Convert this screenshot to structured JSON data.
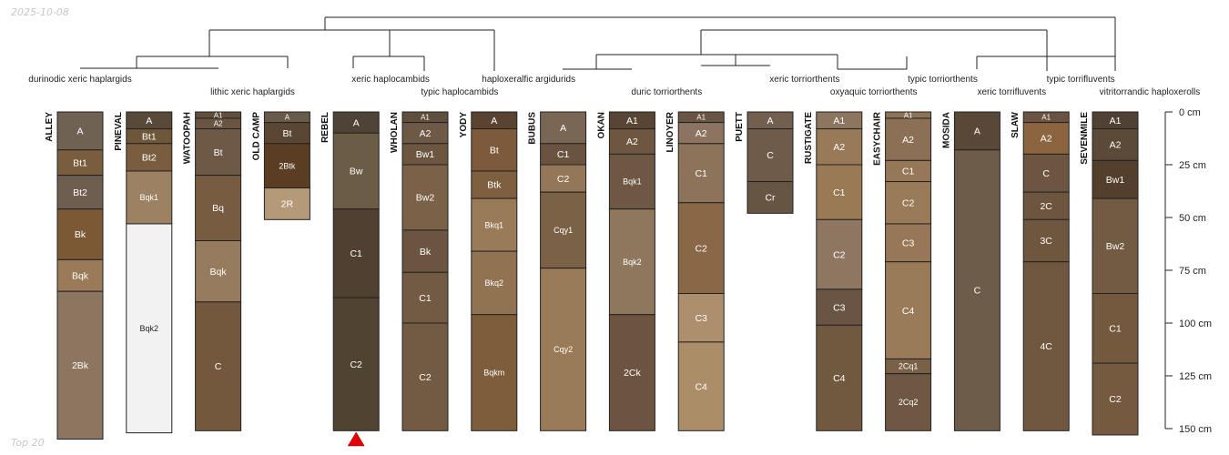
{
  "corner": {
    "date": "2025-10-08",
    "footer": "Top 20"
  },
  "colors": {
    "line": "#222222",
    "marker": "#e00000",
    "light_text": "#ffffff",
    "dark_text": "#222222"
  },
  "chart_data": {
    "type": "soil-profile-sketch",
    "depth_axis": {
      "unit": "cm",
      "range": [
        0,
        150
      ],
      "ticks": [
        0,
        25,
        50,
        75,
        100,
        125,
        150
      ],
      "tick_labels": [
        "0 cm",
        "25 cm",
        "50 cm",
        "75 cm",
        "100 cm",
        "125 cm",
        "150 cm"
      ]
    },
    "dendrogram": {
      "labels": [
        {
          "text": "durinodic xeric haplargids",
          "profile": 0,
          "row": 0
        },
        {
          "text": "lithic xeric haplargids",
          "profile": 2.5,
          "row": 1
        },
        {
          "text": "xeric haplocambids",
          "profile": 4.5,
          "row": 0
        },
        {
          "text": "typic haplocambids",
          "profile": 5.5,
          "row": 1
        },
        {
          "text": "haploxeralfic argidurids",
          "profile": 6.5,
          "row": 0
        },
        {
          "text": "duric torriorthents",
          "profile": 8.5,
          "row": 1
        },
        {
          "text": "xeric torriorthents",
          "profile": 10.5,
          "row": 0
        },
        {
          "text": "typic torriorthents",
          "profile": 12.5,
          "row": 0
        },
        {
          "text": "oxyaquic torriorthents",
          "profile": 11.5,
          "row": 1
        },
        {
          "text": "typic torrifluvents",
          "profile": 14.5,
          "row": 0
        },
        {
          "text": "xeric torrifluvents",
          "profile": 13.5,
          "row": 1
        },
        {
          "text": "vitritorrandic haploxerolls",
          "profile": 15.5,
          "row": 1
        }
      ]
    },
    "marker": {
      "profile": 4,
      "shape": "triangle"
    },
    "profiles": [
      {
        "name": "ALLEY",
        "horizons": [
          {
            "name": "A",
            "top": 0,
            "bottom": 18,
            "color": "#6f6253"
          },
          {
            "name": "Bt1",
            "top": 18,
            "bottom": 30,
            "color": "#7a5c3e"
          },
          {
            "name": "Bt2",
            "top": 30,
            "bottom": 46,
            "color": "#6e5e50"
          },
          {
            "name": "Bk",
            "top": 46,
            "bottom": 70,
            "color": "#7c5935"
          },
          {
            "name": "Bqk",
            "top": 70,
            "bottom": 85,
            "color": "#9a7a57"
          },
          {
            "name": "2Bk",
            "top": 85,
            "bottom": 155,
            "color": "#8d7660"
          }
        ]
      },
      {
        "name": "PINEVAL",
        "horizons": [
          {
            "name": "A",
            "top": 0,
            "bottom": 8,
            "color": "#594938"
          },
          {
            "name": "Bt1",
            "top": 8,
            "bottom": 15,
            "color": "#6e5639"
          },
          {
            "name": "Bt2",
            "top": 15,
            "bottom": 28,
            "color": "#7a5d3f"
          },
          {
            "name": "Bqk1",
            "top": 28,
            "bottom": 53,
            "color": "#9c8163"
          },
          {
            "name": "Bqk2",
            "top": 53,
            "bottom": 152,
            "color": "#f2f2f2"
          }
        ]
      },
      {
        "name": "WATOOPAH",
        "horizons": [
          {
            "name": "A1",
            "top": 0,
            "bottom": 3,
            "color": "#614e3d"
          },
          {
            "name": "A2",
            "top": 3,
            "bottom": 8,
            "color": "#6a5442"
          },
          {
            "name": "Bt",
            "top": 8,
            "bottom": 30,
            "color": "#6e5947"
          },
          {
            "name": "Bq",
            "top": 30,
            "bottom": 61,
            "color": "#775c42"
          },
          {
            "name": "Bqk",
            "top": 61,
            "bottom": 90,
            "color": "#967b5f"
          },
          {
            "name": "C",
            "top": 90,
            "bottom": 151,
            "color": "#73583e"
          }
        ]
      },
      {
        "name": "OLD CAMP",
        "horizons": [
          {
            "name": "A",
            "top": 0,
            "bottom": 5,
            "color": "#6a5a49"
          },
          {
            "name": "Bt",
            "top": 5,
            "bottom": 15,
            "color": "#5b4634"
          },
          {
            "name": "2Btk",
            "top": 15,
            "bottom": 36,
            "color": "#5a3d23"
          },
          {
            "name": "2R",
            "top": 36,
            "bottom": 51,
            "color": "#b49a78"
          }
        ]
      },
      {
        "name": "REBEL",
        "horizons": [
          {
            "name": "A",
            "top": 0,
            "bottom": 10,
            "color": "#4f4236"
          },
          {
            "name": "Bw",
            "top": 10,
            "bottom": 46,
            "color": "#6b5c46"
          },
          {
            "name": "C1",
            "top": 46,
            "bottom": 88,
            "color": "#4f4031"
          },
          {
            "name": "C2",
            "top": 88,
            "bottom": 151,
            "color": "#514332"
          }
        ]
      },
      {
        "name": "WHOLAN",
        "horizons": [
          {
            "name": "A1",
            "top": 0,
            "bottom": 5,
            "color": "#614f3e"
          },
          {
            "name": "A2",
            "top": 5,
            "bottom": 15,
            "color": "#6e5946"
          },
          {
            "name": "Bw1",
            "top": 15,
            "bottom": 25,
            "color": "#6d5640"
          },
          {
            "name": "Bw2",
            "top": 25,
            "bottom": 56,
            "color": "#7a6148"
          },
          {
            "name": "Bk",
            "top": 56,
            "bottom": 76,
            "color": "#6b5540"
          },
          {
            "name": "C1",
            "top": 76,
            "bottom": 100,
            "color": "#735b43"
          },
          {
            "name": "C2",
            "top": 100,
            "bottom": 151,
            "color": "#735a43"
          }
        ]
      },
      {
        "name": "YODY",
        "horizons": [
          {
            "name": "A",
            "top": 0,
            "bottom": 8,
            "color": "#5a4431"
          },
          {
            "name": "Bt",
            "top": 8,
            "bottom": 28,
            "color": "#7e5a3d"
          },
          {
            "name": "Btk",
            "top": 28,
            "bottom": 41,
            "color": "#7e6040"
          },
          {
            "name": "Bkq1",
            "top": 41,
            "bottom": 66,
            "color": "#9a7b58"
          },
          {
            "name": "Bkq2",
            "top": 66,
            "bottom": 96,
            "color": "#917352"
          },
          {
            "name": "Bqkm",
            "top": 96,
            "bottom": 151,
            "color": "#7e5e3a"
          }
        ]
      },
      {
        "name": "BUBUS",
        "horizons": [
          {
            "name": "A",
            "top": 0,
            "bottom": 15,
            "color": "#7a6654"
          },
          {
            "name": "C1",
            "top": 15,
            "bottom": 25,
            "color": "#6a5440"
          },
          {
            "name": "C2",
            "top": 25,
            "bottom": 38,
            "color": "#947658"
          },
          {
            "name": "Cqy1",
            "top": 38,
            "bottom": 74,
            "color": "#7b6246"
          },
          {
            "name": "Cqy2",
            "top": 74,
            "bottom": 151,
            "color": "#997b57"
          }
        ]
      },
      {
        "name": "OKAN",
        "horizons": [
          {
            "name": "A1",
            "top": 0,
            "bottom": 8,
            "color": "#584533"
          },
          {
            "name": "A2",
            "top": 8,
            "bottom": 20,
            "color": "#6e5641"
          },
          {
            "name": "Bqk1",
            "top": 20,
            "bottom": 46,
            "color": "#6e5743"
          },
          {
            "name": "Bqk2",
            "top": 46,
            "bottom": 96,
            "color": "#8f775e"
          },
          {
            "name": "2Ck",
            "top": 96,
            "bottom": 151,
            "color": "#6c5440"
          }
        ]
      },
      {
        "name": "LINOYER",
        "horizons": [
          {
            "name": "A1",
            "top": 0,
            "bottom": 5,
            "color": "#6a5443"
          },
          {
            "name": "A2",
            "top": 5,
            "bottom": 15,
            "color": "#8c7460"
          },
          {
            "name": "C1",
            "top": 15,
            "bottom": 43,
            "color": "#8c735a"
          },
          {
            "name": "C2",
            "top": 43,
            "bottom": 86,
            "color": "#8a6746"
          },
          {
            "name": "C3",
            "top": 86,
            "bottom": 109,
            "color": "#ad8e6d"
          },
          {
            "name": "C4",
            "top": 109,
            "bottom": 151,
            "color": "#ab8d68"
          }
        ]
      },
      {
        "name": "PUETT",
        "horizons": [
          {
            "name": "A",
            "top": 0,
            "bottom": 8,
            "color": "#725f4d"
          },
          {
            "name": "C",
            "top": 8,
            "bottom": 33,
            "color": "#6e5b4a"
          },
          {
            "name": "Cr",
            "top": 33,
            "bottom": 48,
            "color": "#675544"
          }
        ]
      },
      {
        "name": "RUSTIGATE",
        "horizons": [
          {
            "name": "A1",
            "top": 0,
            "bottom": 8,
            "color": "#8d7660"
          },
          {
            "name": "A2",
            "top": 8,
            "bottom": 25,
            "color": "#997a57"
          },
          {
            "name": "C1",
            "top": 25,
            "bottom": 51,
            "color": "#997a55"
          },
          {
            "name": "C2",
            "top": 51,
            "bottom": 84,
            "color": "#8f7660"
          },
          {
            "name": "C3",
            "top": 84,
            "bottom": 101,
            "color": "#6a5544"
          },
          {
            "name": "C4",
            "top": 101,
            "bottom": 151,
            "color": "#71593f"
          }
        ]
      },
      {
        "name": "EASYCHAIR",
        "horizons": [
          {
            "name": "A1",
            "top": 0,
            "bottom": 3,
            "color": "#8e7256"
          },
          {
            "name": "A2",
            "top": 3,
            "bottom": 23,
            "color": "#8c7056"
          },
          {
            "name": "C1",
            "top": 23,
            "bottom": 33,
            "color": "#967757"
          },
          {
            "name": "C2",
            "top": 33,
            "bottom": 53,
            "color": "#9a7b58"
          },
          {
            "name": "C3",
            "top": 53,
            "bottom": 71,
            "color": "#977757"
          },
          {
            "name": "C4",
            "top": 71,
            "bottom": 117,
            "color": "#9a7b57"
          },
          {
            "name": "2Cq1",
            "top": 117,
            "bottom": 124,
            "color": "#7a6046"
          },
          {
            "name": "2Cq2",
            "top": 124,
            "bottom": 151,
            "color": "#6e5843"
          }
        ]
      },
      {
        "name": "MOSIDA",
        "horizons": [
          {
            "name": "A",
            "top": 0,
            "bottom": 18,
            "color": "#594838"
          },
          {
            "name": "C",
            "top": 18,
            "bottom": 151,
            "color": "#6e5c4b"
          }
        ]
      },
      {
        "name": "SLAW",
        "horizons": [
          {
            "name": "A1",
            "top": 0,
            "bottom": 5,
            "color": "#6a5441"
          },
          {
            "name": "A2",
            "top": 5,
            "bottom": 20,
            "color": "#8a6540"
          },
          {
            "name": "C",
            "top": 20,
            "bottom": 38,
            "color": "#6d5641"
          },
          {
            "name": "2C",
            "top": 38,
            "bottom": 51,
            "color": "#6d5540"
          },
          {
            "name": "3C",
            "top": 51,
            "bottom": 71,
            "color": "#6f573f"
          },
          {
            "name": "4C",
            "top": 71,
            "bottom": 151,
            "color": "#70573f"
          }
        ]
      },
      {
        "name": "SEVENMILE",
        "horizons": [
          {
            "name": "A1",
            "top": 0,
            "bottom": 8,
            "color": "#4f4133"
          },
          {
            "name": "A2",
            "top": 8,
            "bottom": 23,
            "color": "#5c4a39"
          },
          {
            "name": "Bw1",
            "top": 23,
            "bottom": 41,
            "color": "#533f2c"
          },
          {
            "name": "Bw2",
            "top": 41,
            "bottom": 86,
            "color": "#735b43"
          },
          {
            "name": "C1",
            "top": 86,
            "bottom": 119,
            "color": "#75593e"
          },
          {
            "name": "C2",
            "top": 119,
            "bottom": 153,
            "color": "#765a3f"
          }
        ]
      }
    ]
  }
}
